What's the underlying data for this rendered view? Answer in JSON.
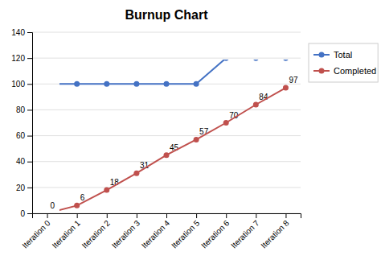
{
  "chart_data": {
    "type": "line",
    "title": "Burnup Chart",
    "categories": [
      "Iteration 0",
      "Iteration 1",
      "Iteration 2",
      "Iteration 3",
      "Iteration 4",
      "Iteration 5",
      "Iteration 6",
      "Iteration 7",
      "Iteration 8"
    ],
    "series": [
      {
        "name": "Total",
        "color": "#4472C4",
        "marker": "circle",
        "values": [
          100,
          100,
          100,
          100,
          100,
          100,
          120,
          120,
          120
        ]
      },
      {
        "name": "Completed",
        "color": "#C0504D",
        "marker": "circle",
        "data_labels": true,
        "values": [
          0,
          6,
          18,
          31,
          45,
          57,
          70,
          84,
          97
        ]
      }
    ],
    "ylim": [
      0,
      140
    ],
    "yticks": [
      0,
      20,
      40,
      60,
      80,
      100,
      120,
      140
    ],
    "grid": true,
    "legend": "right"
  }
}
